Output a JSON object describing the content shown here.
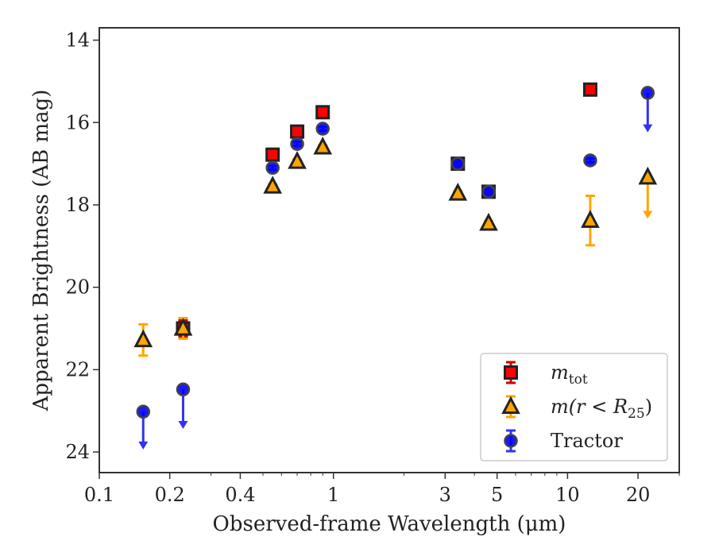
{
  "chart_data": {
    "type": "scatter",
    "xlabel": "Observed-frame Wavelength (μm)",
    "ylabel": "Apparent Brightness (AB mag)",
    "xscale": "log",
    "xlim": [
      0.1,
      30
    ],
    "ylim": [
      24.5,
      13.7
    ],
    "y_inverted": true,
    "x_ticks": [
      0.1,
      0.2,
      0.4,
      1,
      3,
      5,
      10,
      20
    ],
    "x_tick_labels": [
      "0.1",
      "0.2",
      "0.4",
      "1",
      "3",
      "5",
      "10",
      "20"
    ],
    "y_ticks": [
      14,
      16,
      18,
      20,
      22,
      24
    ],
    "y_tick_labels": [
      "14",
      "16",
      "18",
      "20",
      "22",
      "24"
    ],
    "grid": false,
    "legend_position": "lower-right",
    "series": [
      {
        "name": "m_tot",
        "legend": {
          "italic": "m",
          "sub": "tot",
          "rest": ""
        },
        "marker": "square",
        "color": "#ff0000",
        "edge_color": "#222222",
        "errbar_color": "#cc0000",
        "points": [
          {
            "x": 0.228,
            "y": 21.0,
            "err": 0.2
          },
          {
            "x": 0.55,
            "y": 16.78,
            "err": 0.05
          },
          {
            "x": 0.7,
            "y": 16.22,
            "err": 0.05
          },
          {
            "x": 0.9,
            "y": 15.75,
            "err": 0.05
          },
          {
            "x": 3.4,
            "y": 17.0,
            "err": 0.05
          },
          {
            "x": 4.6,
            "y": 17.68,
            "err": 0.05
          },
          {
            "x": 12.5,
            "y": 15.2,
            "err": 0.05
          }
        ]
      },
      {
        "name": "m(r < R_25)",
        "legend": {
          "italic": "m",
          "sub": "25",
          "rest": "(r < R"
        },
        "marker": "triangle",
        "color": "#ffa500",
        "edge_color": "#222222",
        "errbar_color": "#ffa500",
        "points": [
          {
            "x": 0.154,
            "y": 21.28,
            "err": 0.38
          },
          {
            "x": 0.228,
            "y": 21.0,
            "err": 0.25
          },
          {
            "x": 0.55,
            "y": 17.55,
            "err": 0.05
          },
          {
            "x": 0.7,
            "y": 16.95,
            "err": 0.05
          },
          {
            "x": 0.9,
            "y": 16.6,
            "err": 0.05
          },
          {
            "x": 3.4,
            "y": 17.72,
            "err": 0.05
          },
          {
            "x": 4.6,
            "y": 18.45,
            "err": 0.05
          },
          {
            "x": 12.5,
            "y": 18.38,
            "err": 0.6
          },
          {
            "x": 22.0,
            "y": 17.33,
            "upper_limit": true,
            "arrow_to": 18.3
          }
        ]
      },
      {
        "name": "Tractor",
        "legend": {
          "italic": "",
          "sub": "",
          "rest": "Tractor"
        },
        "marker": "circle",
        "color": "#0000ff",
        "edge_color": "#444444",
        "errbar_color": "#3333ee",
        "points": [
          {
            "x": 0.154,
            "y": 23.02,
            "upper_limit": true,
            "arrow_to": 23.9
          },
          {
            "x": 0.228,
            "y": 22.48,
            "upper_limit": true,
            "arrow_to": 23.4
          },
          {
            "x": 0.55,
            "y": 17.1,
            "err": 0.05
          },
          {
            "x": 0.7,
            "y": 16.52,
            "err": 0.05
          },
          {
            "x": 0.9,
            "y": 16.15,
            "err": 0.05
          },
          {
            "x": 3.4,
            "y": 17.0,
            "err": 0.05
          },
          {
            "x": 4.6,
            "y": 17.68,
            "err": 0.05
          },
          {
            "x": 12.5,
            "y": 16.92,
            "err": 0.05
          },
          {
            "x": 22.0,
            "y": 15.28,
            "upper_limit": true,
            "arrow_to": 16.2
          }
        ]
      }
    ]
  }
}
